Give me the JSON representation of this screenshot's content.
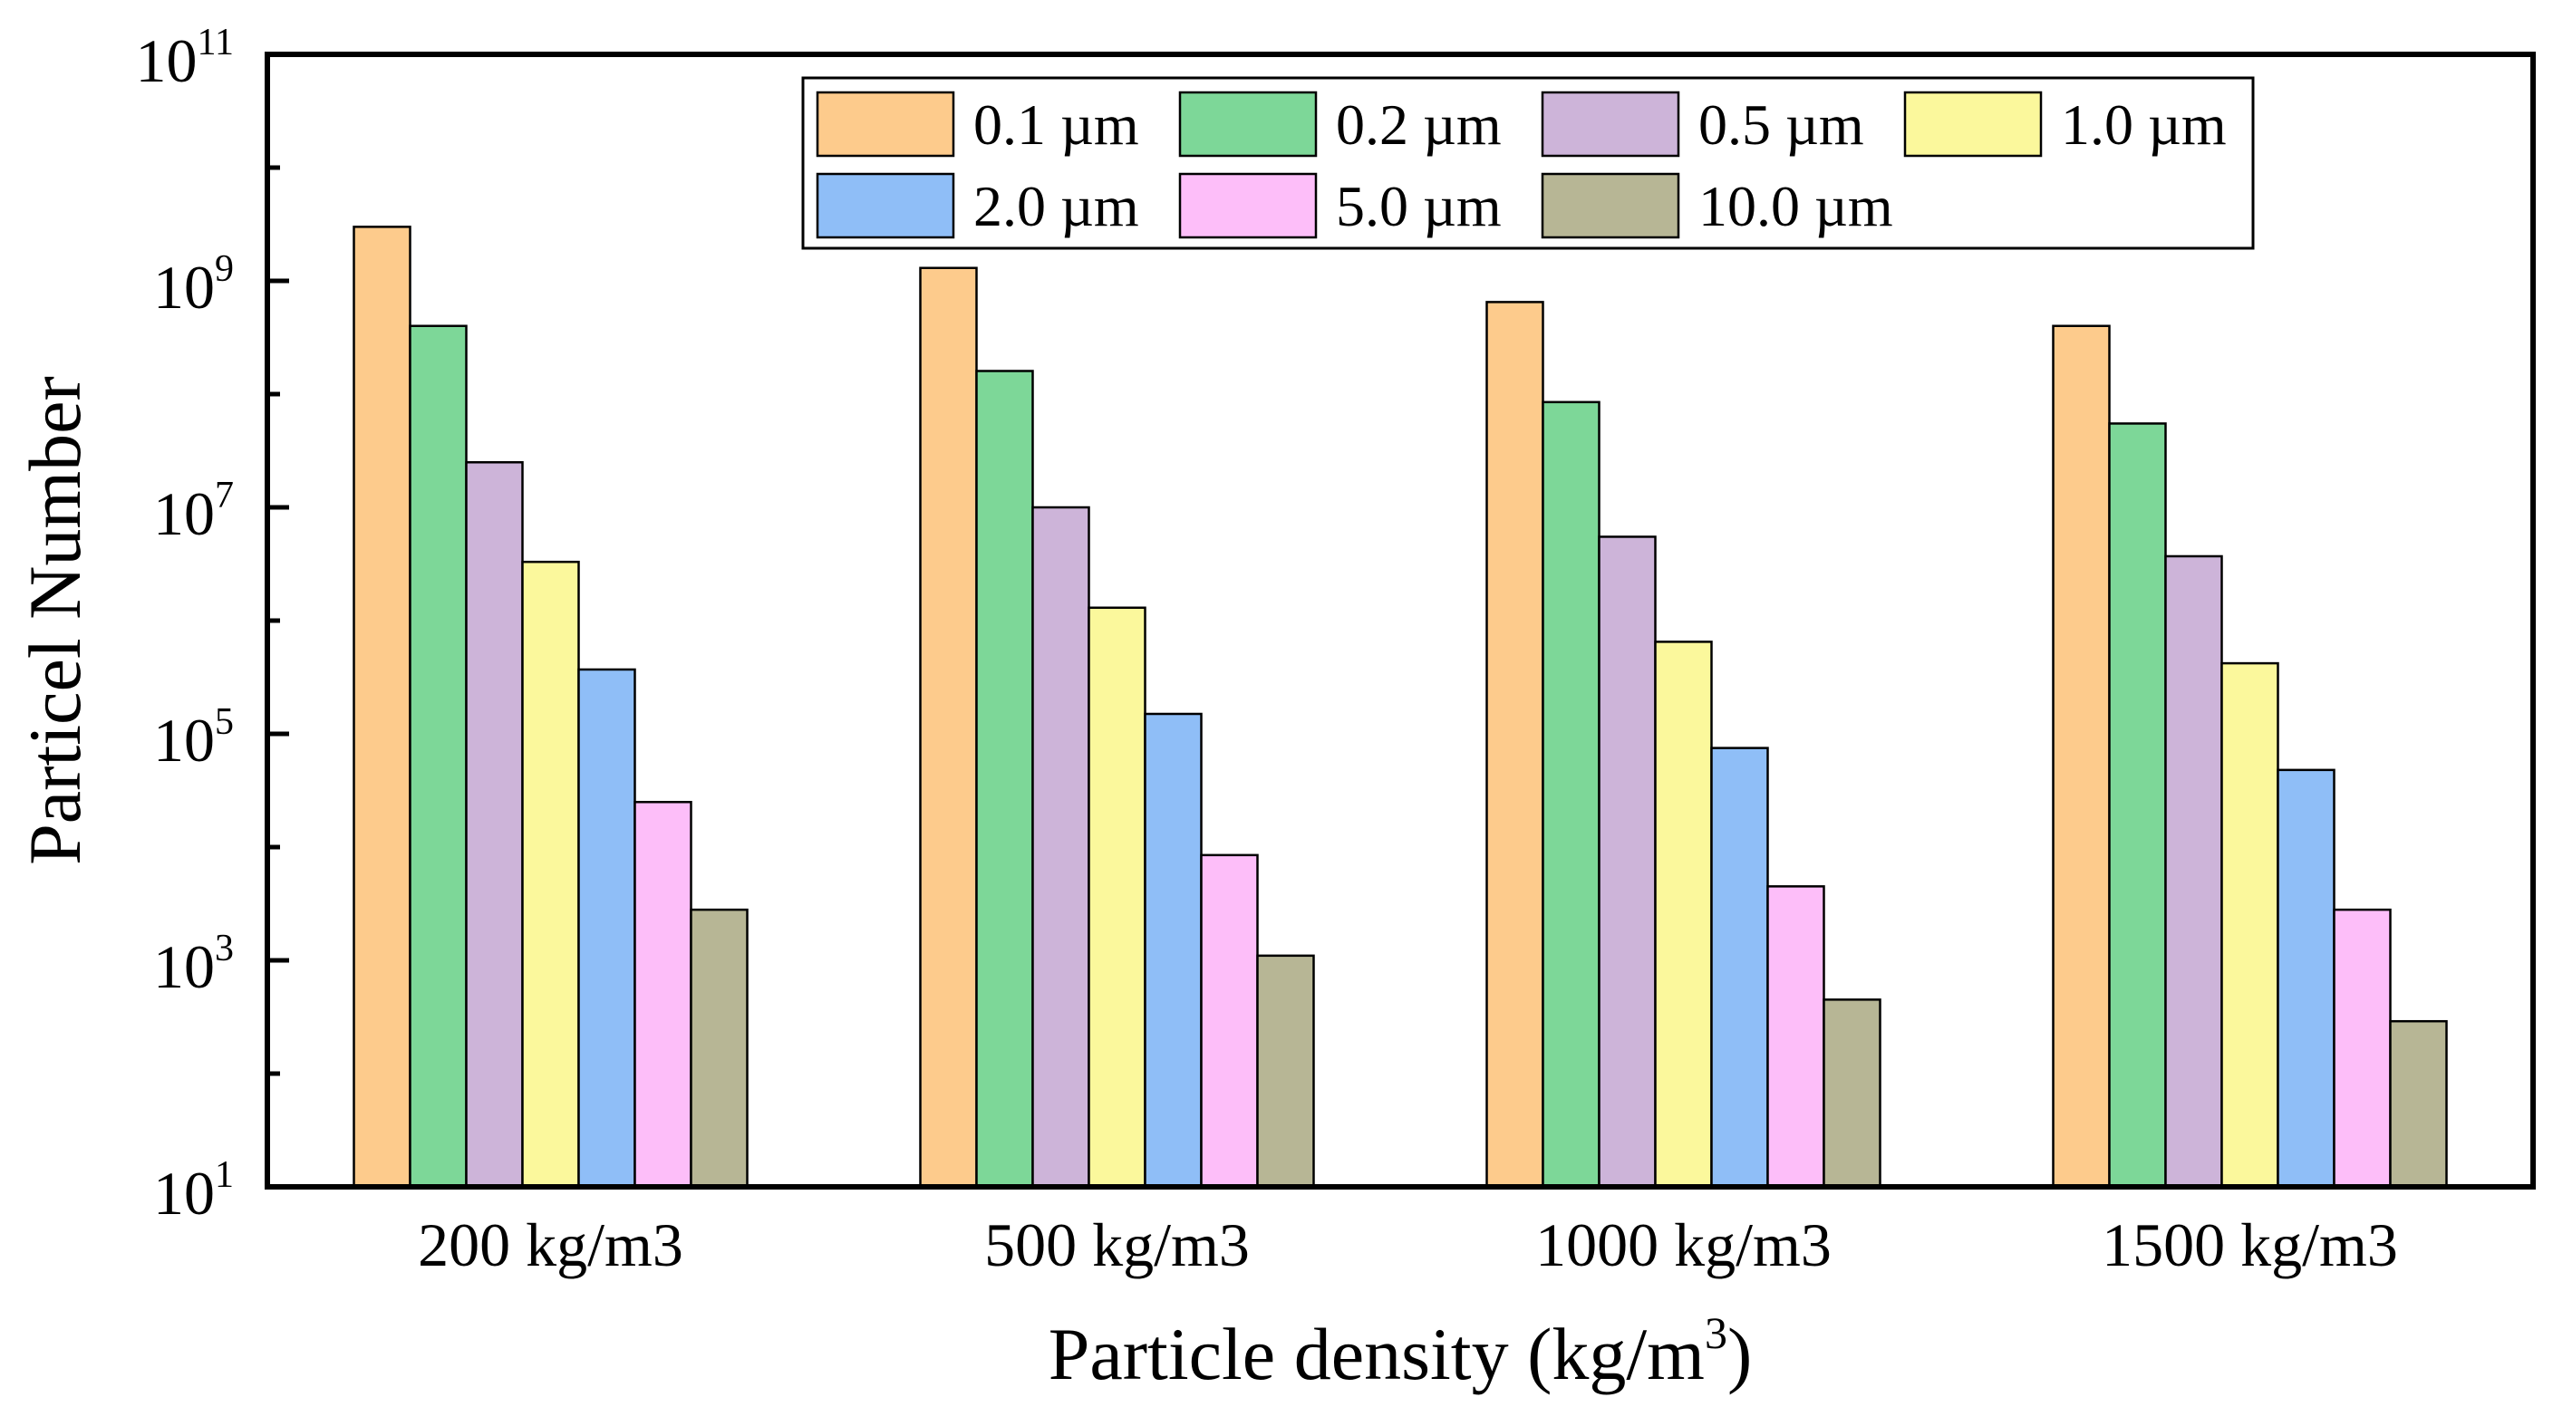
{
  "chart_data": {
    "type": "bar",
    "title": "",
    "xlabel": "Particle density (kg/m",
    "xlabel_superscript": "3",
    "xlabel_suffix": ")",
    "ylabel": "Particel Number",
    "yscale": "log",
    "ylim": [
      10,
      100000000000
    ],
    "y_tick_labels": [
      {
        "base": "10",
        "exp": "1",
        "value": 10
      },
      {
        "base": "10",
        "exp": "3",
        "value": 1000
      },
      {
        "base": "10",
        "exp": "5",
        "value": 100000
      },
      {
        "base": "10",
        "exp": "7",
        "value": 10000000
      },
      {
        "base": "10",
        "exp": "9",
        "value": 1000000000
      },
      {
        "base": "10",
        "exp": "11",
        "value": 100000000000
      }
    ],
    "categories": [
      "200 kg/m3",
      "500 kg/m3",
      "1000 kg/m3",
      "1500 kg/m3"
    ],
    "series": [
      {
        "name": "0.1 µm",
        "color": "#FDCB8C",
        "values": [
          3000000000,
          1300000000,
          650000000,
          400000000
        ]
      },
      {
        "name": "0.2 µm",
        "color": "#7DD798",
        "values": [
          400000000,
          160000000,
          85000000,
          55000000
        ]
      },
      {
        "name": "0.5 µm",
        "color": "#CDB4D9",
        "values": [
          25000000,
          10000000,
          5500000,
          3700000
        ]
      },
      {
        "name": "1.0 µm",
        "color": "#FBF89C",
        "values": [
          3300000,
          1300000,
          650000,
          420000
        ]
      },
      {
        "name": "2.0 µm",
        "color": "#8FBEF7",
        "values": [
          370000,
          150000,
          75000,
          48000
        ]
      },
      {
        "name": "5.0 µm",
        "color": "#FDBEF9",
        "values": [
          25000,
          8500,
          4500,
          2800
        ]
      },
      {
        "name": "10.0 µm",
        "color": "#B7B695",
        "values": [
          2800,
          1100,
          450,
          290
        ]
      }
    ],
    "legend": {
      "placement": "top-right",
      "columns": 4
    }
  }
}
